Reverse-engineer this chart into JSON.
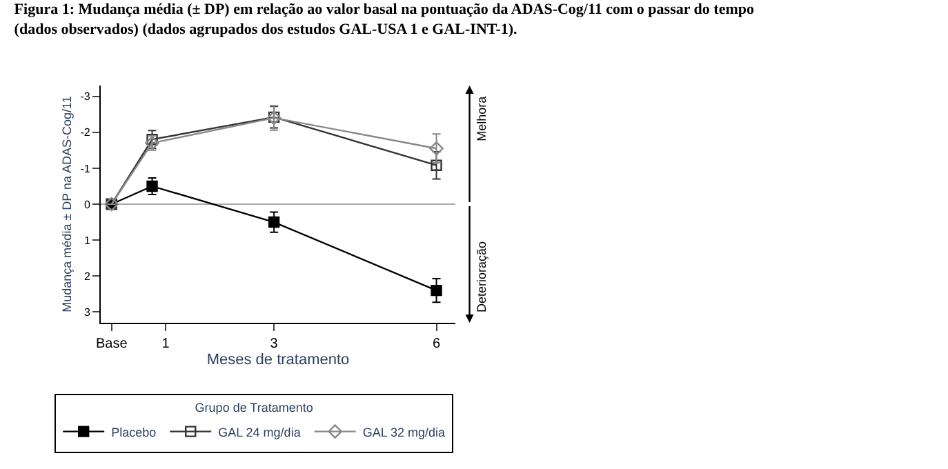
{
  "chart_data": {
    "type": "line",
    "title": "Figura 1: Mudança média (± DP) em relação ao valor basal na pontuação da ADAS-Cog/11 com o passar do tempo (dados observados) (dados agrupados dos estudos GAL-USA 1 e GAL-INT-1).",
    "xlabel": "Meses de tratamento",
    "ylabel": "Mudança média ± DP na ADAS-Cog/11",
    "legend_title": "Grupo de Tratamento",
    "legend": "bottom",
    "grid": false,
    "x": [
      0,
      0.75,
      3,
      6
    ],
    "xlim": [
      -0.2,
      6.35
    ],
    "xticks": [
      {
        "value": 0,
        "label": "Base"
      },
      1,
      3,
      6
    ],
    "ylim": [
      3.3,
      -3.3
    ],
    "yticks": [
      -3,
      -2,
      -1,
      0,
      1,
      2,
      3
    ],
    "ref_lines": [
      {
        "axis": "y",
        "value": 0,
        "color": "#aaaaaa"
      }
    ],
    "annotations": [
      "Melhora",
      "Deterioração"
    ],
    "series": [
      {
        "name": "Placebo",
        "color": "#000000",
        "marker": "square",
        "values": [
          0,
          -0.5,
          0.5,
          2.4
        ],
        "errors": [
          null,
          0.23,
          0.28,
          0.33
        ]
      },
      {
        "name": "GAL 24 mg/dia",
        "color": "#333333",
        "marker": "square",
        "values": [
          0,
          -1.8,
          -2.42,
          -1.08
        ],
        "errors": [
          null,
          0.25,
          0.3,
          0.38
        ]
      },
      {
        "name": "GAL 32 mg/dia",
        "color": "#888888",
        "marker": "diamond",
        "values": [
          0,
          -1.7,
          -2.4,
          -1.55
        ],
        "errors": [
          null,
          0.2,
          0.34,
          0.4
        ]
      }
    ]
  }
}
